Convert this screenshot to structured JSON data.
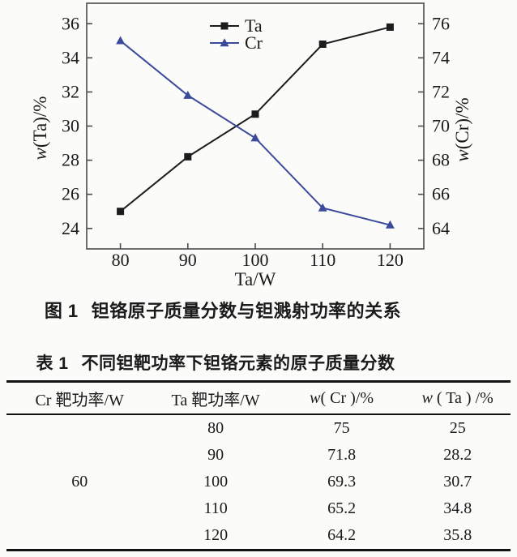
{
  "figure": {
    "caption_label": "图 1",
    "caption_text": "钽铬原子质量分数与钽溅射功率的关系"
  },
  "chart_data": {
    "type": "line",
    "x": [
      80,
      90,
      100,
      110,
      120
    ],
    "series": [
      {
        "name": "Ta",
        "axis": "left",
        "marker": "square",
        "color": "#1c1c1c",
        "values": [
          25.0,
          28.2,
          30.7,
          34.8,
          35.8
        ]
      },
      {
        "name": "Cr",
        "axis": "right",
        "marker": "triangle",
        "color": "#3b4a9b",
        "values": [
          75.0,
          71.8,
          69.3,
          65.2,
          64.2
        ]
      }
    ],
    "xlabel": "Ta/W",
    "ylabel_left": "w(Ta)/%",
    "ylabel_right": "w(Cr)/%",
    "xlim": [
      75,
      125
    ],
    "ylim_left": [
      22.8,
      37.2
    ],
    "ylim_right": [
      62.8,
      77.2
    ],
    "xticks": [
      80,
      90,
      100,
      110,
      120
    ],
    "yticks_left": [
      24,
      26,
      28,
      30,
      32,
      34,
      36
    ],
    "yticks_right": [
      64,
      66,
      68,
      70,
      72,
      74,
      76
    ],
    "grid": false,
    "legend_position": "top-center-inside",
    "legend": [
      "Ta",
      "Cr"
    ]
  },
  "table": {
    "title_label": "表 1",
    "title_text": "不同钽靶功率下钽铬元素的原子质量分数",
    "columns": [
      "Cr 靶功率/W",
      "Ta 靶功率/W",
      "w( Cr )/%",
      "w ( Ta ) /%"
    ],
    "cr_power": "60",
    "rows": [
      {
        "ta_power": "80",
        "w_cr": "75",
        "w_ta": "25"
      },
      {
        "ta_power": "90",
        "w_cr": "71.8",
        "w_ta": "28.2"
      },
      {
        "ta_power": "100",
        "w_cr": "69.3",
        "w_ta": "30.7"
      },
      {
        "ta_power": "110",
        "w_cr": "65.2",
        "w_ta": "34.8"
      },
      {
        "ta_power": "120",
        "w_cr": "64.2",
        "w_ta": "35.8"
      }
    ]
  },
  "colors": {
    "ta_series": "#1c1c1c",
    "cr_series": "#3b4a9b",
    "axis_frame": "#4c4c4c",
    "text": "#1a1a1a",
    "rule": "#111111",
    "background": "#fbfbf9"
  }
}
